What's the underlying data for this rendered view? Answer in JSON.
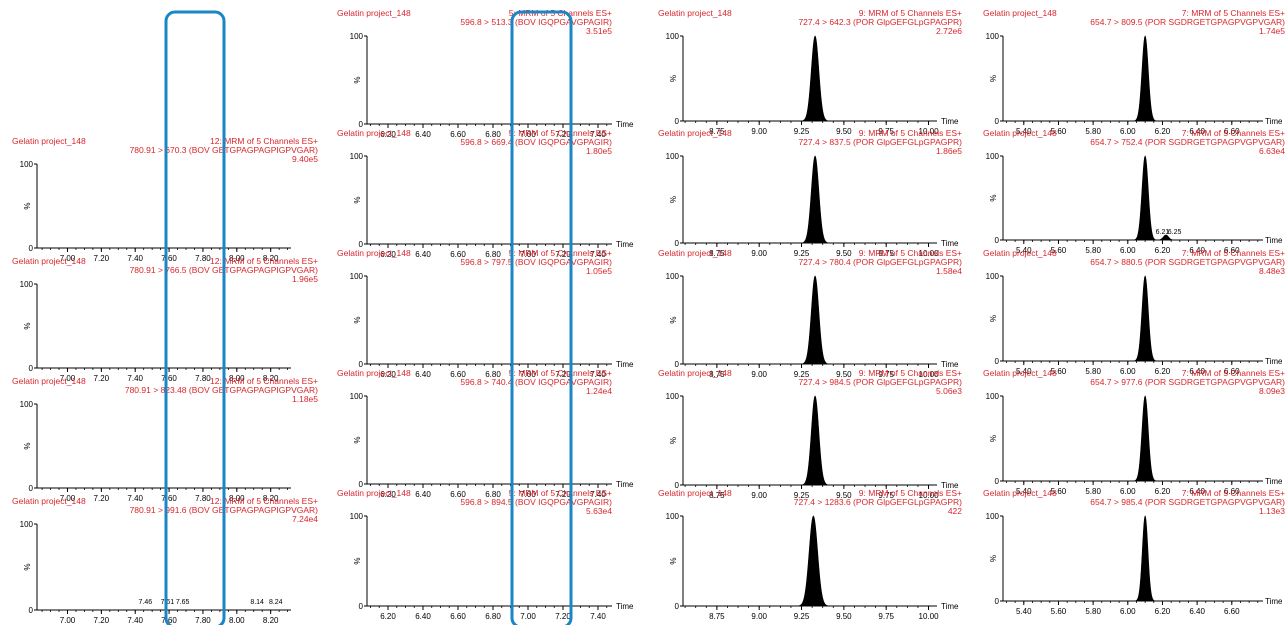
{
  "common": {
    "sample_label": "Gelatin project_148",
    "y_top_label": "100",
    "y_zero_label": "0",
    "y_pct_label": "%",
    "x_axis_label": "Time"
  },
  "colors": {
    "header_text": "#d9262c",
    "peak_fill": "#000000",
    "axis": "#000000",
    "highlight_box": "#1b86c5"
  },
  "chart_data": [
    {
      "type": "area",
      "header": "12: MRM of 5 Channels ES+",
      "transition": "780.91 > 670.3 (BOV GETGPAGPAGPIGPVGAR)",
      "intensity": "9.40e5",
      "xlim": [
        6.82,
        8.32
      ],
      "ticks": [
        7.0,
        7.2,
        7.4,
        7.6,
        7.8,
        8.0,
        8.2
      ],
      "tick_labels": [
        "7.00",
        "7.20",
        "7.40",
        "7.60",
        "7.80",
        "8.00",
        "8.20"
      ],
      "peaks": [],
      "peak_labels": []
    },
    {
      "type": "area",
      "header": "12: MRM of 5 Channels ES+",
      "transition": "780.91 > 766.5 (BOV GETGPAGPAGPIGPVGAR)",
      "intensity": "1.96e5",
      "xlim": [
        6.82,
        8.32
      ],
      "ticks": [
        7.0,
        7.2,
        7.4,
        7.6,
        7.8,
        8.0,
        8.2
      ],
      "tick_labels": [
        "7.00",
        "7.20",
        "7.40",
        "7.60",
        "7.80",
        "8.00",
        "8.20"
      ],
      "peaks": [],
      "peak_labels": []
    },
    {
      "type": "area",
      "header": "12: MRM of 5 Channels ES+",
      "transition": "780.91 > 823.48 (BOV GETGPAGPAGPIGPVGAR)",
      "intensity": "1.18e5",
      "xlim": [
        6.82,
        8.32
      ],
      "ticks": [
        7.0,
        7.2,
        7.4,
        7.6,
        7.8,
        8.0,
        8.2
      ],
      "tick_labels": [
        "7.00",
        "7.20",
        "7.40",
        "7.60",
        "7.80",
        "8.00",
        "8.20"
      ],
      "peaks": [],
      "peak_labels": []
    },
    {
      "type": "area",
      "header": "12: MRM of 5 Channels ES+",
      "transition": "780.91 > 991.6 (BOV GETGPAGPAGPIGPVGAR)",
      "intensity": "7.24e4",
      "xlim": [
        6.82,
        8.32
      ],
      "ticks": [
        7.0,
        7.2,
        7.4,
        7.6,
        7.8,
        8.0,
        8.2
      ],
      "tick_labels": [
        "7.00",
        "7.20",
        "7.40",
        "7.60",
        "7.80",
        "8.00",
        "8.20"
      ],
      "peaks": [],
      "peak_labels": [
        {
          "x": 7.46,
          "text": "7.46"
        },
        {
          "x": 7.59,
          "text": "7.61"
        },
        {
          "x": 7.68,
          "text": "7.65"
        },
        {
          "x": 8.12,
          "text": "8.14"
        },
        {
          "x": 8.23,
          "text": "8.24"
        }
      ]
    },
    {
      "type": "area",
      "header": "5: MRM of 5 Channels ES+",
      "transition": "596.8 > 513.3 (BOV IGQPGAVGPAGIR)",
      "intensity": "3.51e5",
      "xlim": [
        6.08,
        7.48
      ],
      "ticks": [
        6.2,
        6.4,
        6.6,
        6.8,
        7.0,
        7.2,
        7.4
      ],
      "tick_labels": [
        "6.20",
        "6.40",
        "6.60",
        "6.80",
        "7.00",
        "7.20",
        "7.40"
      ],
      "peaks": [],
      "peak_labels": []
    },
    {
      "type": "area",
      "header": "5: MRM of 5 Channels ES+",
      "transition": "596.8 > 669.4 (BOV IGQPGAVGPAGIR)",
      "intensity": "1.80e5",
      "xlim": [
        6.08,
        7.48
      ],
      "ticks": [
        6.2,
        6.4,
        6.6,
        6.8,
        7.0,
        7.2,
        7.4
      ],
      "tick_labels": [
        "6.20",
        "6.40",
        "6.60",
        "6.80",
        "7.00",
        "7.20",
        "7.40"
      ],
      "peaks": [],
      "peak_labels": []
    },
    {
      "type": "area",
      "header": "5: MRM of 5 Channels ES+",
      "transition": "596.8 > 797.5 (BOV IGQPGAVGPAGIR)",
      "intensity": "1.05e5",
      "xlim": [
        6.08,
        7.48
      ],
      "ticks": [
        6.2,
        6.4,
        6.6,
        6.8,
        7.0,
        7.2,
        7.4
      ],
      "tick_labels": [
        "6.20",
        "6.40",
        "6.60",
        "6.80",
        "7.00",
        "7.20",
        "7.40"
      ],
      "peaks": [],
      "peak_labels": []
    },
    {
      "type": "area",
      "header": "5: MRM of 5 Channels ES+",
      "transition": "596.8 > 740.4 (BOV IGQPGAVGPAGIR)",
      "intensity": "1.24e4",
      "xlim": [
        6.08,
        7.48
      ],
      "ticks": [
        6.2,
        6.4,
        6.6,
        6.8,
        7.0,
        7.2,
        7.4
      ],
      "tick_labels": [
        "6.20",
        "6.40",
        "6.60",
        "6.80",
        "7.00",
        "7.20",
        "7.40"
      ],
      "peaks": [],
      "peak_labels": []
    },
    {
      "type": "area",
      "header": "5: MRM of 5 Channels ES+",
      "transition": "596.8 > 894.5 (BOV IGQPGAVGPAGIR)",
      "intensity": "5.63e4",
      "xlim": [
        6.08,
        7.48
      ],
      "ticks": [
        6.2,
        6.4,
        6.6,
        6.8,
        7.0,
        7.2,
        7.4
      ],
      "tick_labels": [
        "6.20",
        "6.40",
        "6.60",
        "6.80",
        "7.00",
        "7.20",
        "7.40"
      ],
      "peaks": [],
      "peak_labels": []
    },
    {
      "type": "area",
      "header": "9: MRM of 5 Channels ES+",
      "transition": "727.4 > 642.3 (POR GlpGEFGLpGPAGPR)",
      "intensity": "2.72e6",
      "xlim": [
        8.55,
        10.05
      ],
      "ticks": [
        8.75,
        9.0,
        9.25,
        9.5,
        9.75,
        10.0
      ],
      "tick_labels": [
        "8.75",
        "9.00",
        "9.25",
        "9.50",
        "9.75",
        "10.00"
      ],
      "peaks": [
        {
          "x": 9.33,
          "sigma": 0.022,
          "h": 100
        }
      ],
      "peak_labels": []
    },
    {
      "type": "area",
      "header": "9: MRM of 5 Channels ES+",
      "transition": "727.4 > 837.5 (POR GlpGEFGLpGPAGPR)",
      "intensity": "1.86e5",
      "xlim": [
        8.55,
        10.05
      ],
      "ticks": [
        8.75,
        9.0,
        9.25,
        9.5,
        9.75,
        10.0
      ],
      "tick_labels": [
        "8.75",
        "9.00",
        "9.25",
        "9.50",
        "9.75",
        "10.00"
      ],
      "peaks": [
        {
          "x": 9.33,
          "sigma": 0.022,
          "h": 100
        }
      ],
      "peak_labels": []
    },
    {
      "type": "area",
      "header": "9: MRM of 5 Channels ES+",
      "transition": "727.4 > 780.4 (POR GlpGEFGLpGPAGPR)",
      "intensity": "1.58e4",
      "xlim": [
        8.55,
        10.05
      ],
      "ticks": [
        8.75,
        9.0,
        9.25,
        9.5,
        9.75,
        10.0
      ],
      "tick_labels": [
        "8.75",
        "9.00",
        "9.25",
        "9.50",
        "9.75",
        "10.00"
      ],
      "peaks": [
        {
          "x": 9.33,
          "sigma": 0.022,
          "h": 100
        }
      ],
      "peak_labels": []
    },
    {
      "type": "area",
      "header": "9: MRM of 5 Channels ES+",
      "transition": "727.4 > 984.5 (POR GlpGEFGLpGPAGPR)",
      "intensity": "5.06e3",
      "xlim": [
        8.55,
        10.05
      ],
      "ticks": [
        8.75,
        9.0,
        9.25,
        9.5,
        9.75,
        10.0
      ],
      "tick_labels": [
        "8.75",
        "9.00",
        "9.25",
        "9.50",
        "9.75",
        "10.00"
      ],
      "peaks": [
        {
          "x": 9.33,
          "sigma": 0.022,
          "h": 100
        }
      ],
      "peak_labels": []
    },
    {
      "type": "area",
      "header": "9: MRM of 5 Channels ES+",
      "transition": "727.4 > 1283.6 (POR GlpGEFGLpGPAGPR)",
      "intensity": "422",
      "xlim": [
        8.55,
        10.05
      ],
      "ticks": [
        8.75,
        9.0,
        9.25,
        9.5,
        9.75,
        10.0
      ],
      "tick_labels": [
        "8.75",
        "9.00",
        "9.25",
        "9.50",
        "9.75",
        "10.00"
      ],
      "peaks": [
        {
          "x": 9.32,
          "sigma": 0.025,
          "h": 100
        }
      ],
      "peak_labels": []
    },
    {
      "type": "area",
      "header": "7: MRM of 5 Channels ES+",
      "transition": "654.7 > 809.5 (POR SGDRGETGPAGPVGPVGAR)",
      "intensity": "1.74e5",
      "xlim": [
        5.28,
        6.78
      ],
      "ticks": [
        5.4,
        5.6,
        5.8,
        6.0,
        6.2,
        6.4,
        6.6
      ],
      "tick_labels": [
        "5.40",
        "5.60",
        "5.80",
        "6.00",
        "6.20",
        "6.40",
        "6.60"
      ],
      "peaks": [
        {
          "x": 6.1,
          "sigma": 0.018,
          "h": 100
        }
      ],
      "peak_labels": []
    },
    {
      "type": "area",
      "header": "7: MRM of 5 Channels ES+",
      "transition": "654.7 > 752.4 (POR SGDRGETGPAGPVGPVGAR)",
      "intensity": "6.63e4",
      "xlim": [
        5.28,
        6.78
      ],
      "ticks": [
        5.4,
        5.6,
        5.8,
        6.0,
        6.2,
        6.4,
        6.6
      ],
      "tick_labels": [
        "5.40",
        "5.60",
        "5.80",
        "6.00",
        "6.20",
        "6.40",
        "6.60"
      ],
      "peaks": [
        {
          "x": 6.1,
          "sigma": 0.018,
          "h": 100
        },
        {
          "x": 6.22,
          "sigma": 0.015,
          "h": 6
        }
      ],
      "peak_labels": [
        {
          "x": 6.2,
          "text": "6.21"
        },
        {
          "x": 6.27,
          "text": "6.25"
        }
      ]
    },
    {
      "type": "area",
      "header": "7: MRM of 5 Channels ES+",
      "transition": "654.7 > 880.5 (POR SGDRGETGPAGPVGPVGAR)",
      "intensity": "8.48e3",
      "xlim": [
        5.28,
        6.78
      ],
      "ticks": [
        5.4,
        5.6,
        5.8,
        6.0,
        6.2,
        6.4,
        6.6
      ],
      "tick_labels": [
        "5.40",
        "5.60",
        "5.80",
        "6.00",
        "6.20",
        "6.40",
        "6.60"
      ],
      "peaks": [
        {
          "x": 6.1,
          "sigma": 0.018,
          "h": 100
        }
      ],
      "peak_labels": []
    },
    {
      "type": "area",
      "header": "7: MRM of 5 Channels ES+",
      "transition": "654.7 > 977.6 (POR SGDRGETGPAGPVGPVGAR)",
      "intensity": "8.09e3",
      "xlim": [
        5.28,
        6.78
      ],
      "ticks": [
        5.4,
        5.6,
        5.8,
        6.0,
        6.2,
        6.4,
        6.6
      ],
      "tick_labels": [
        "5.40",
        "5.60",
        "5.80",
        "6.00",
        "6.20",
        "6.40",
        "6.60"
      ],
      "peaks": [
        {
          "x": 6.1,
          "sigma": 0.018,
          "h": 100
        }
      ],
      "peak_labels": []
    },
    {
      "type": "area",
      "header": "7: MRM of 5 Channels ES+",
      "transition": "654.7 > 985.4 (POR SGDRGETGPAGPVGPVGAR)",
      "intensity": "1.13e3",
      "xlim": [
        5.28,
        6.78
      ],
      "ticks": [
        5.4,
        5.6,
        5.8,
        6.0,
        6.2,
        6.4,
        6.6
      ],
      "tick_labels": [
        "5.40",
        "5.60",
        "5.80",
        "6.00",
        "6.20",
        "6.40",
        "6.60"
      ],
      "peaks": [
        {
          "x": 6.1,
          "sigma": 0.016,
          "h": 100
        }
      ],
      "peak_labels": []
    }
  ]
}
